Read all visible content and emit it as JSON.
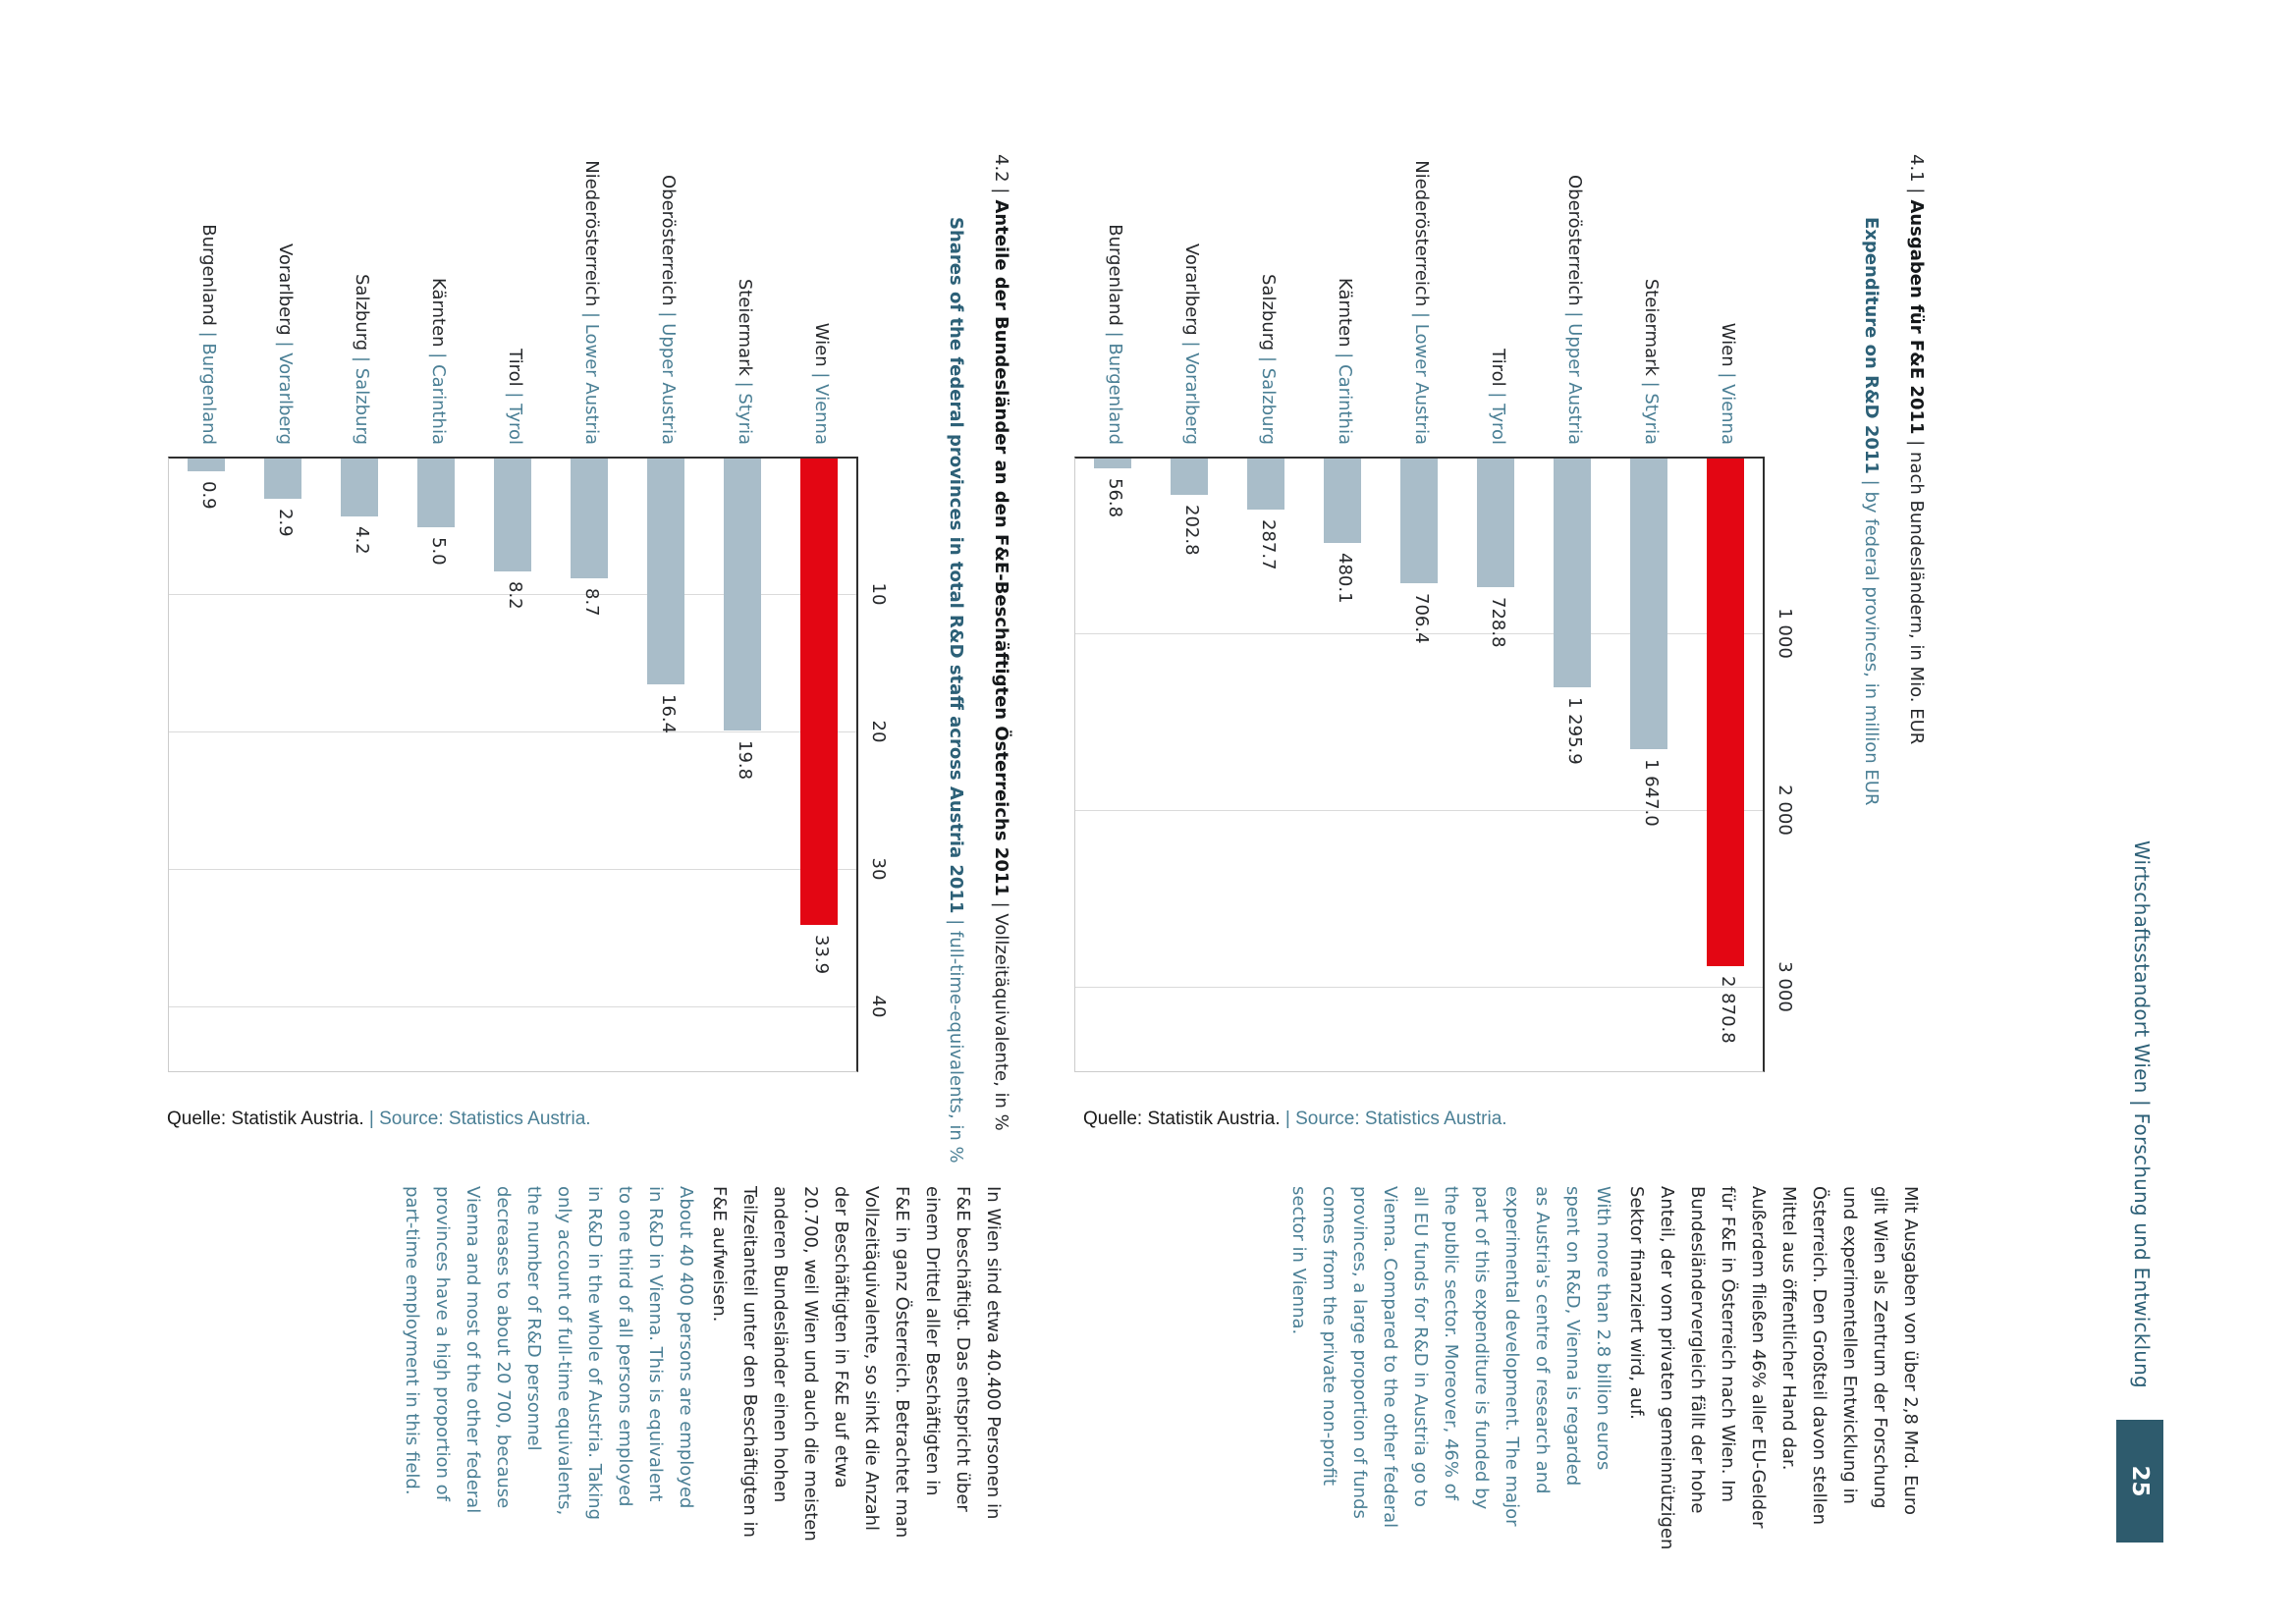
{
  "header": {
    "title": "Wirtschaftsstandort Wien | Forschung und Entwicklung",
    "page_number": "25"
  },
  "colors": {
    "highlight_red": "#e30613",
    "bar_gray_blue": "#a9bdc9",
    "teal_text": "#4a7f95",
    "teal_dark": "#2c6077",
    "header_teal": "#2e5b6d",
    "text_dark": "#26282b"
  },
  "figures": [
    {
      "number_label": "4.1 |",
      "title_de_bold": "Ausgaben für F&E 2011",
      "title_de_rest": " | nach Bundesländern, in Mio. EUR",
      "title_en_bold": "Expenditure on R&D 2011",
      "title_en_rest": " | by federal provinces, in million EUR",
      "source_de": "Quelle: Statistik Austria. ",
      "source_en": "| Source: Statistics Austria.",
      "chart_data": {
        "type": "bar",
        "orientation": "horizontal",
        "title": "Ausgaben für F&E 2011 | Expenditure on R&D 2011",
        "xlabel": "Mio. EUR | million EUR",
        "categories": [
          {
            "de": "Wien",
            "en": "Vienna"
          },
          {
            "de": "Steiermark",
            "en": "Styria"
          },
          {
            "de": "Oberösterreich",
            "en": "Upper Austria"
          },
          {
            "de": "Tirol",
            "en": "Tyrol"
          },
          {
            "de": "Niederösterreich",
            "en": "Lower Austria"
          },
          {
            "de": "Kärnten",
            "en": "Carinthia"
          },
          {
            "de": "Salzburg",
            "en": "Salzburg"
          },
          {
            "de": "Vorarlberg",
            "en": "Vorarlberg"
          },
          {
            "de": "Burgenland",
            "en": "Burgenland"
          }
        ],
        "values": [
          2870.8,
          1647.0,
          1295.9,
          728.8,
          706.4,
          480.1,
          287.7,
          202.8,
          56.8
        ],
        "value_labels": [
          "2 870.8",
          "1 647.0",
          "1 295.9",
          "728.8",
          "706.4",
          "480.1",
          "287.7",
          "202.8",
          "56.8"
        ],
        "ticks": [
          {
            "value": 1000,
            "label": "1 000"
          },
          {
            "value": 2000,
            "label": "2 000"
          },
          {
            "value": 3000,
            "label": "3 000"
          }
        ],
        "xlim": [
          0,
          3483
        ],
        "grid": true,
        "highlight_index": 0,
        "bar_color": "#a9bdc9",
        "highlight_color": "#e30613"
      }
    },
    {
      "number_label": "4.2 |",
      "title_de_bold": "Anteile der Bundesländer an den F&E-Beschäftigten Österreichs 2011",
      "title_de_rest": " | Vollzeitäquivalente, in %",
      "title_en_bold": "Shares of the federal provinces in total R&D staff across Austria 2011",
      "title_en_rest": " | full-time-equivalents, in %",
      "source_de": "Quelle: Statistik Austria. ",
      "source_en": "| Source: Statistics Austria.",
      "chart_data": {
        "type": "bar",
        "orientation": "horizontal",
        "title": "Anteile der Bundesländer an den F&E-Beschäftigten Österreichs 2011 | Shares of the federal provinces in total R&D staff across Austria 2011",
        "xlabel": "Vollzeitäquivalente, in % | full-time-equivalents, in %",
        "categories": [
          {
            "de": "Wien",
            "en": "Vienna"
          },
          {
            "de": "Steiermark",
            "en": "Styria"
          },
          {
            "de": "Oberösterreich",
            "en": "Upper Austria"
          },
          {
            "de": "Niederösterreich",
            "en": "Lower Austria"
          },
          {
            "de": "Tirol",
            "en": "Tyrol"
          },
          {
            "de": "Kärnten",
            "en": "Carinthia"
          },
          {
            "de": "Salzburg",
            "en": "Salzburg"
          },
          {
            "de": "Vorarlberg",
            "en": "Vorarlberg"
          },
          {
            "de": "Burgenland",
            "en": "Burgenland"
          }
        ],
        "values": [
          33.9,
          19.8,
          16.4,
          8.7,
          8.2,
          5.0,
          4.2,
          2.9,
          0.9
        ],
        "value_labels": [
          "33.9",
          "19.8",
          "16.4",
          "8.7",
          "8.2",
          "5.0",
          "4.2",
          "2.9",
          "0.9"
        ],
        "ticks": [
          {
            "value": 10,
            "label": "10"
          },
          {
            "value": 20,
            "label": "20"
          },
          {
            "value": 30,
            "label": "30"
          },
          {
            "value": 40,
            "label": "40"
          }
        ],
        "xlim": [
          0,
          44.8
        ],
        "grid": true,
        "highlight_index": 0,
        "bar_color": "#a9bdc9",
        "highlight_color": "#e30613"
      }
    }
  ],
  "paragraphs": [
    {
      "de_lines": [
        "Mit Ausgaben von über 2,8 Mrd. Euro",
        "gilt Wien als Zentrum der Forschung",
        "und experimentellen Entwicklung in",
        "Österreich. Den Großteil davon stellen",
        "Mittel aus öffentlicher Hand dar.",
        "Außerdem fließen 46% aller EU-Gelder",
        "für F&E in Österreich nach Wien. Im",
        "Bundesländervergleich fällt der hohe",
        "Anteil, der vom privaten gemeinnützigen",
        "Sektor finanziert wird, auf."
      ],
      "en_lines": [
        "With more than 2.8 billion euros",
        "spent on R&D, Vienna is regarded",
        "as Austria's centre of research and",
        "experimental development. The major",
        "part of this expenditure is funded by",
        "the public sector. Moreover, 46% of",
        "all EU funds for R&D in Austria go to",
        "Vienna. Compared to the other federal",
        "provinces, a large proportion of funds",
        "comes from the private non-profit",
        "sector in Vienna."
      ]
    },
    {
      "de_lines": [
        "In Wien sind etwa 40.400 Personen in",
        "F&E beschäftigt. Das entspricht über",
        "einem Drittel aller Beschäftigten in",
        "F&E in ganz Österreich. Betrachtet man",
        "Vollzeitäquivalente, so sinkt die Anzahl",
        "der Beschäftigten in F&E auf etwa",
        "20.700, weil Wien und auch die meisten",
        "anderen Bundesländer einen hohen",
        "Teilzeitanteil unter den Beschäftigten in",
        "F&E aufweisen."
      ],
      "en_lines": [
        "About 40 400 persons are employed",
        "in R&D in Vienna. This is equivalent",
        "to one third of all persons employed",
        "in R&D in the whole of Austria. Taking",
        "only account of full-time equivalents,",
        "the number of R&D personnel",
        "decreases to about 20 700, because",
        "Vienna and most of the other federal",
        "provinces have a high proportion of",
        "part-time employment in this field."
      ]
    }
  ]
}
